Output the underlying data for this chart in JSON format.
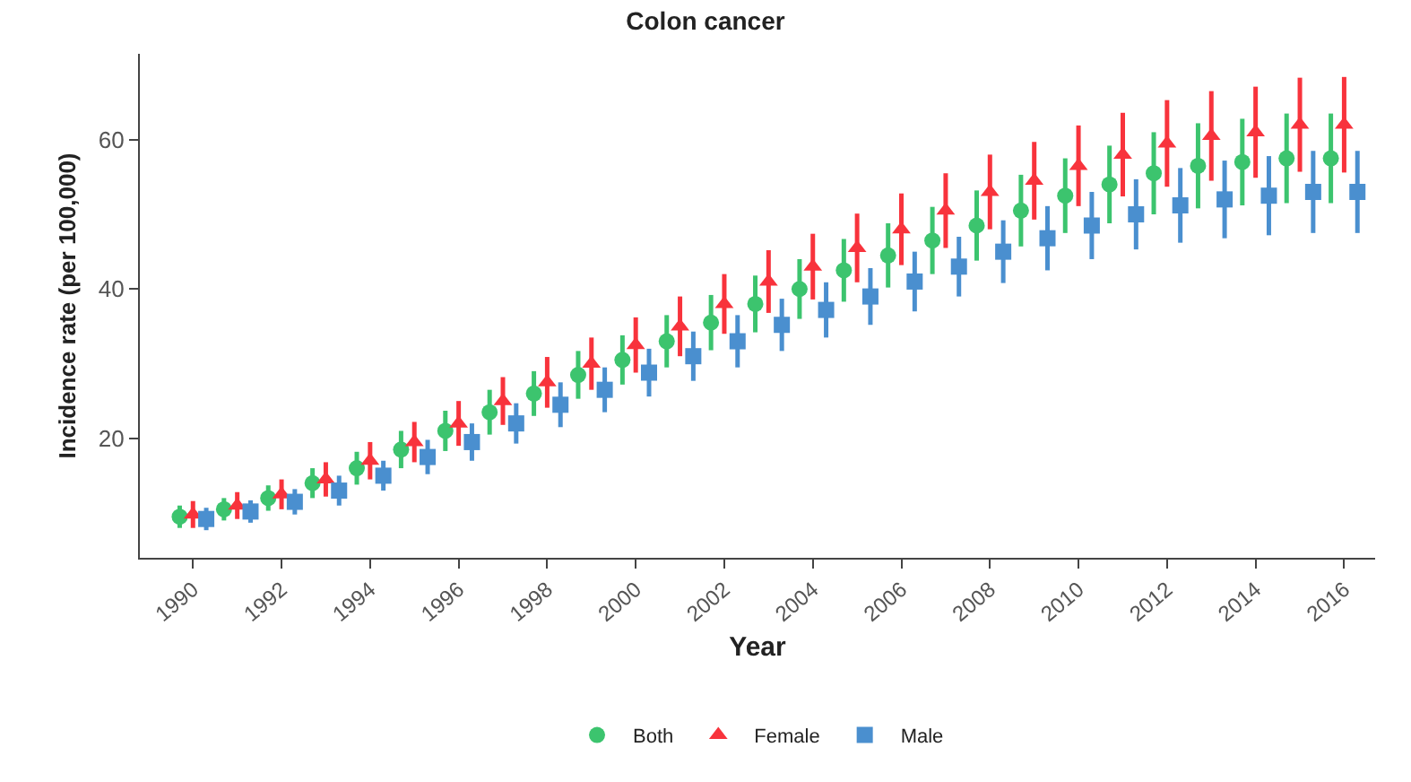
{
  "chart_data": {
    "type": "scatter",
    "title": "Colon cancer",
    "xlabel": "Year",
    "ylabel": "Incidence rate (per 100,000)",
    "x": [
      1990,
      1991,
      1992,
      1993,
      1994,
      1995,
      1996,
      1997,
      1998,
      1999,
      2000,
      2001,
      2002,
      2003,
      2004,
      2005,
      2006,
      2007,
      2008,
      2009,
      2010,
      2011,
      2012,
      2013,
      2014,
      2015,
      2016
    ],
    "xlim": [
      1988.8,
      2016.7
    ],
    "xticks": [
      1990,
      1992,
      1994,
      1996,
      1998,
      2000,
      2002,
      2004,
      2006,
      2008,
      2010,
      2012,
      2014,
      2016
    ],
    "ylim": [
      4,
      71.5
    ],
    "yticks": [
      20,
      40,
      60
    ],
    "grid": false,
    "legend": "bottom",
    "series": [
      {
        "name": "Both",
        "color": "#3cc46e",
        "marker": "circle",
        "x": [
          1989.7,
          1990.7,
          1991.7,
          1992.7,
          1993.7,
          1994.7,
          1995.7,
          1996.7,
          1997.7,
          1998.7,
          1999.7,
          2000.7,
          2001.7,
          2002.7,
          2003.7,
          2004.7,
          2005.7,
          2006.7,
          2007.7,
          2008.7,
          2009.7,
          2010.7,
          2011.7,
          2012.7,
          2013.7,
          2014.7,
          2015.7
        ],
        "values": [
          9.5,
          10.5,
          12,
          14,
          16,
          18.5,
          21,
          23.5,
          26,
          28.5,
          30.5,
          33,
          35.5,
          38,
          40,
          42.5,
          44.5,
          46.5,
          48.5,
          50.5,
          52.5,
          54,
          55.5,
          56.5,
          57,
          57.5,
          57.5
        ],
        "errors": [
          1.5,
          1.5,
          1.7,
          2,
          2.2,
          2.5,
          2.7,
          3,
          3,
          3.2,
          3.3,
          3.5,
          3.7,
          3.8,
          4,
          4.2,
          4.3,
          4.5,
          4.7,
          4.8,
          5,
          5.2,
          5.5,
          5.7,
          5.8,
          6,
          6
        ]
      },
      {
        "name": "Female",
        "color": "#f8333c",
        "marker": "triangle",
        "values": [
          9.8,
          11,
          12.5,
          14.5,
          17,
          19.5,
          22,
          25,
          27.5,
          30,
          32.5,
          35,
          38,
          41,
          43,
          45.5,
          48,
          50.5,
          53,
          54.5,
          56.5,
          58,
          59.5,
          60.5,
          61,
          62,
          62
        ],
        "errors": [
          1.8,
          1.8,
          2,
          2.3,
          2.5,
          2.7,
          3,
          3.2,
          3.4,
          3.5,
          3.7,
          4,
          4,
          4.2,
          4.4,
          4.6,
          4.8,
          5,
          5,
          5.2,
          5.4,
          5.6,
          5.8,
          6,
          6.1,
          6.3,
          6.4
        ]
      },
      {
        "name": "Male",
        "color": "#4a8fcf",
        "marker": "square",
        "x": [
          1990.3,
          1991.3,
          1992.3,
          1993.3,
          1994.3,
          1995.3,
          1996.3,
          1997.3,
          1998.3,
          1999.3,
          2000.3,
          2001.3,
          2002.3,
          2003.3,
          2004.3,
          2005.3,
          2006.3,
          2007.3,
          2008.3,
          2009.3,
          2010.3,
          2011.3,
          2012.3,
          2013.3,
          2014.3,
          2015.3,
          2016.3
        ],
        "values": [
          9.2,
          10.2,
          11.5,
          13,
          15,
          17.5,
          19.5,
          22,
          24.5,
          26.5,
          28.8,
          31,
          33,
          35.2,
          37.2,
          39,
          41,
          43,
          45,
          46.8,
          48.5,
          50,
          51.2,
          52,
          52.5,
          53,
          53
        ],
        "errors": [
          1.5,
          1.5,
          1.7,
          2,
          2,
          2.3,
          2.5,
          2.7,
          3,
          3,
          3.2,
          3.3,
          3.5,
          3.5,
          3.7,
          3.8,
          4,
          4,
          4.2,
          4.3,
          4.5,
          4.7,
          5,
          5.2,
          5.3,
          5.5,
          5.5
        ]
      }
    ]
  }
}
